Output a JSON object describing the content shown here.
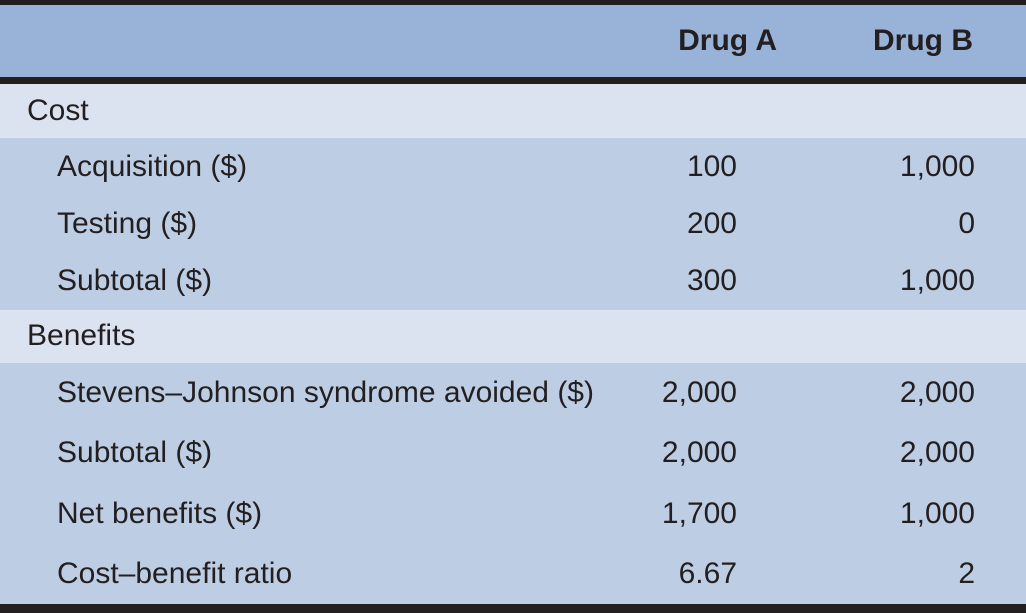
{
  "table": {
    "header": {
      "drug_a": "Drug A",
      "drug_b": "Drug B"
    },
    "sections": [
      {
        "name": "Cost",
        "rows": [
          {
            "label": "Acquisition ($)",
            "drug_a": "100",
            "drug_b": "1,000"
          },
          {
            "label": "Testing ($)",
            "drug_a": "200",
            "drug_b": "0"
          },
          {
            "label": "Subtotal ($)",
            "drug_a": "300",
            "drug_b": "1,000"
          }
        ]
      },
      {
        "name": "Benefits",
        "rows": [
          {
            "label": "Stevens–Johnson syndrome avoided ($)",
            "drug_a": "2,000",
            "drug_b": "2,000"
          },
          {
            "label": "Subtotal ($)",
            "drug_a": "2,000",
            "drug_b": "2,000"
          },
          {
            "label": "Net benefits ($)",
            "drug_a": "1,700",
            "drug_b": "1,000"
          },
          {
            "label": "Cost–benefit ratio",
            "drug_a": "6.67",
            "drug_b": "2"
          }
        ]
      }
    ],
    "colors": {
      "header_bg": "#98b2d8",
      "section_bg": "#dce3f0",
      "row_bg": "#bdcee4",
      "rule": "#231f20",
      "text": "#231f20"
    }
  },
  "chart_data": {
    "type": "table",
    "columns": [
      "",
      "Drug A",
      "Drug B"
    ],
    "rows": [
      [
        "Cost",
        "",
        ""
      ],
      [
        "Acquisition ($)",
        "100",
        "1,000"
      ],
      [
        "Testing ($)",
        "200",
        "0"
      ],
      [
        "Subtotal ($)",
        "300",
        "1,000"
      ],
      [
        "Benefits",
        "",
        ""
      ],
      [
        "Stevens–Johnson syndrome avoided ($)",
        "2,000",
        "2,000"
      ],
      [
        "Subtotal ($)",
        "2,000",
        "2,000"
      ],
      [
        "Net benefits ($)",
        "1,700",
        "1,000"
      ],
      [
        "Cost–benefit ratio",
        "6.67",
        "2"
      ]
    ]
  }
}
